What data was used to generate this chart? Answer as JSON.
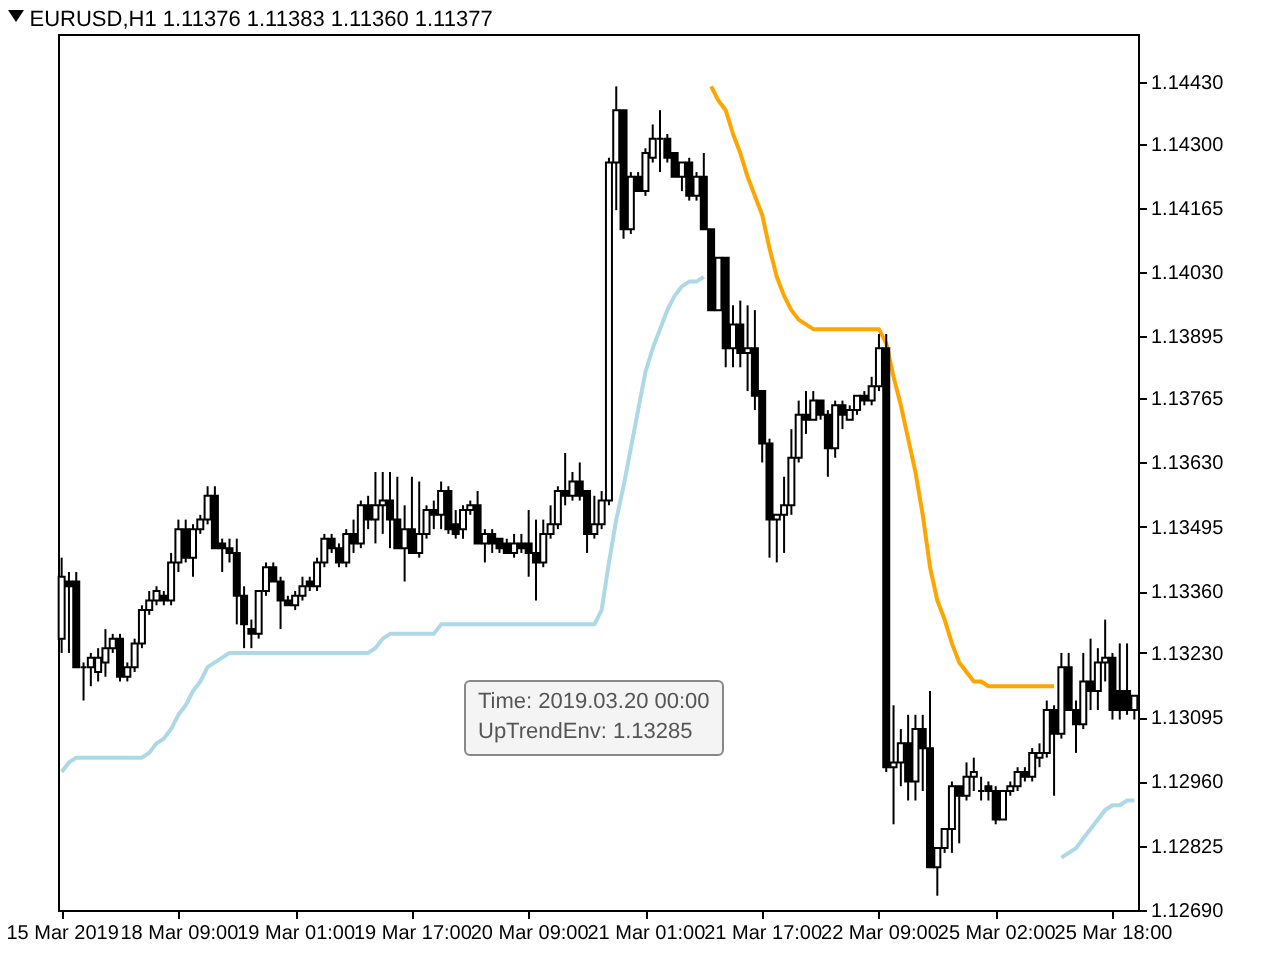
{
  "chart_data": {
    "type": "candlestick",
    "title": "EURUSD,H1  1.11376 1.11383 1.11360 1.11377",
    "categories": [
      "15 Mar 2019",
      null,
      null,
      null,
      null,
      null,
      null,
      null,
      null,
      null,
      null,
      null,
      null,
      null,
      null,
      null,
      "18 Mar 09:00",
      null,
      null,
      null,
      null,
      null,
      null,
      null,
      null,
      null,
      null,
      null,
      null,
      null,
      null,
      null,
      "19 Mar 01:00",
      null,
      null,
      null,
      null,
      null,
      null,
      null,
      null,
      null,
      null,
      null,
      null,
      null,
      null,
      null,
      "19 Mar 17:00",
      null,
      null,
      null,
      null,
      null,
      null,
      null,
      null,
      null,
      null,
      null,
      null,
      null,
      null,
      null,
      "20 Mar 09:00",
      null,
      null,
      null,
      null,
      null,
      null,
      null,
      null,
      null,
      null,
      null,
      null,
      null,
      null,
      null,
      "21 Mar 01:00",
      null,
      null,
      null,
      null,
      null,
      null,
      null,
      null,
      null,
      null,
      null,
      null,
      null,
      null,
      null,
      "21 Mar 17:00",
      null,
      null,
      null,
      null,
      null,
      null,
      null,
      null,
      null,
      null,
      null,
      null,
      null,
      null,
      null,
      "22 Mar 09:00",
      null,
      null,
      null,
      null,
      null,
      null,
      null,
      null,
      null,
      null,
      null,
      null,
      null,
      null,
      null,
      "25 Mar 02:00",
      null,
      null,
      null,
      null,
      null,
      null,
      null,
      null,
      null,
      null,
      null,
      null,
      null,
      null,
      null,
      "25 Mar 18:00",
      null,
      null,
      null
    ],
    "ohlc": [
      [
        1.1326,
        1.1343,
        1.1323,
        1.1339
      ],
      [
        1.1338,
        1.134,
        1.1323,
        1.1337
      ],
      [
        1.1338,
        1.134,
        1.132,
        1.132
      ],
      [
        1.132,
        1.1321,
        1.1313,
        1.132
      ],
      [
        1.132,
        1.1323,
        1.1316,
        1.1322
      ],
      [
        1.1319,
        1.1324,
        1.1317,
        1.1322
      ],
      [
        1.1321,
        1.1328,
        1.1318,
        1.1324
      ],
      [
        1.1324,
        1.1327,
        1.1323,
        1.1326
      ],
      [
        1.1326,
        1.1327,
        1.1317,
        1.1318
      ],
      [
        1.1318,
        1.1321,
        1.1317,
        1.132
      ],
      [
        1.132,
        1.1326,
        1.1319,
        1.1325
      ],
      [
        1.1325,
        1.1333,
        1.1324,
        1.1332
      ],
      [
        1.1332,
        1.1336,
        1.1331,
        1.1334
      ],
      [
        1.1334,
        1.1337,
        1.1333,
        1.1336
      ],
      [
        1.1335,
        1.1336,
        1.1333,
        1.1334
      ],
      [
        1.1334,
        1.1344,
        1.1333,
        1.1342
      ],
      [
        1.1342,
        1.1351,
        1.134,
        1.1349
      ],
      [
        1.1349,
        1.1351,
        1.1342,
        1.1343
      ],
      [
        1.1343,
        1.135,
        1.1339,
        1.1349
      ],
      [
        1.1349,
        1.1352,
        1.1348,
        1.1351
      ],
      [
        1.1351,
        1.1358,
        1.135,
        1.1356
      ],
      [
        1.1356,
        1.1358,
        1.1345,
        1.1345
      ],
      [
        1.1346,
        1.1347,
        1.134,
        1.1345
      ],
      [
        1.1345,
        1.1347,
        1.1342,
        1.1344
      ],
      [
        1.1344,
        1.1347,
        1.1329,
        1.1335
      ],
      [
        1.1335,
        1.1337,
        1.1324,
        1.1329
      ],
      [
        1.1328,
        1.133,
        1.1324,
        1.1327
      ],
      [
        1.1327,
        1.1336,
        1.1326,
        1.1336
      ],
      [
        1.1336,
        1.1342,
        1.1335,
        1.1341
      ],
      [
        1.1341,
        1.1342,
        1.1338,
        1.1338
      ],
      [
        1.1338,
        1.1339,
        1.1328,
        1.1334
      ],
      [
        1.1334,
        1.1335,
        1.1333,
        1.1333
      ],
      [
        1.1333,
        1.1336,
        1.1332,
        1.1335
      ],
      [
        1.1335,
        1.1339,
        1.1334,
        1.1337
      ],
      [
        1.1338,
        1.1339,
        1.1336,
        1.1337
      ],
      [
        1.1337,
        1.1343,
        1.1336,
        1.1342
      ],
      [
        1.1342,
        1.1348,
        1.1341,
        1.1347
      ],
      [
        1.1347,
        1.1348,
        1.1344,
        1.1345
      ],
      [
        1.1345,
        1.1346,
        1.1341,
        1.1342
      ],
      [
        1.1342,
        1.1349,
        1.1341,
        1.1348
      ],
      [
        1.1348,
        1.1351,
        1.1344,
        1.1346
      ],
      [
        1.1346,
        1.1355,
        1.1345,
        1.1354
      ],
      [
        1.1354,
        1.1356,
        1.1349,
        1.1351
      ],
      [
        1.1351,
        1.1361,
        1.1346,
        1.1354
      ],
      [
        1.1354,
        1.1361,
        1.1348,
        1.1355
      ],
      [
        1.1355,
        1.1361,
        1.1345,
        1.1351
      ],
      [
        1.1351,
        1.136,
        1.1345,
        1.1345
      ],
      [
        1.1345,
        1.1354,
        1.1338,
        1.1349
      ],
      [
        1.1349,
        1.136,
        1.1344,
        1.1344
      ],
      [
        1.1344,
        1.1359,
        1.1343,
        1.1348
      ],
      [
        1.1348,
        1.1354,
        1.1347,
        1.1353
      ],
      [
        1.1353,
        1.1355,
        1.1349,
        1.1352
      ],
      [
        1.1352,
        1.1359,
        1.1349,
        1.1357
      ],
      [
        1.1357,
        1.1358,
        1.1348,
        1.1349
      ],
      [
        1.135,
        1.1353,
        1.1347,
        1.1348
      ],
      [
        1.1349,
        1.1354,
        1.1347,
        1.1353
      ],
      [
        1.1353,
        1.1355,
        1.1352,
        1.1354
      ],
      [
        1.1354,
        1.1357,
        1.1346,
        1.1346
      ],
      [
        1.1346,
        1.1349,
        1.1342,
        1.1348
      ],
      [
        1.1348,
        1.1349,
        1.1344,
        1.1346
      ],
      [
        1.1347,
        1.1347,
        1.1344,
        1.1345
      ],
      [
        1.1346,
        1.1347,
        1.1344,
        1.1344
      ],
      [
        1.1344,
        1.1348,
        1.1343,
        1.1346
      ],
      [
        1.1346,
        1.1348,
        1.1344,
        1.1345
      ],
      [
        1.1346,
        1.1353,
        1.1339,
        1.1344
      ],
      [
        1.1344,
        1.1351,
        1.1334,
        1.1342
      ],
      [
        1.1342,
        1.1351,
        1.1341,
        1.1348
      ],
      [
        1.1348,
        1.1354,
        1.1347,
        1.135
      ],
      [
        1.135,
        1.1358,
        1.1349,
        1.1357
      ],
      [
        1.1357,
        1.1365,
        1.1354,
        1.1356
      ],
      [
        1.1356,
        1.1361,
        1.1355,
        1.1359
      ],
      [
        1.1359,
        1.1363,
        1.1355,
        1.1356
      ],
      [
        1.1357,
        1.1357,
        1.1344,
        1.1348
      ],
      [
        1.1348,
        1.1356,
        1.1347,
        1.135
      ],
      [
        1.135,
        1.1357,
        1.1349,
        1.1355
      ],
      [
        1.1355,
        1.1427,
        1.1354,
        1.1426
      ],
      [
        1.1426,
        1.1442,
        1.1416,
        1.1437
      ],
      [
        1.1437,
        1.1437,
        1.141,
        1.1412
      ],
      [
        1.1412,
        1.1424,
        1.1411,
        1.1423
      ],
      [
        1.1423,
        1.1424,
        1.142,
        1.142
      ],
      [
        1.142,
        1.1429,
        1.1419,
        1.1428
      ],
      [
        1.1427,
        1.1434,
        1.1426,
        1.1431
      ],
      [
        1.1431,
        1.1437,
        1.1424,
        1.1431
      ],
      [
        1.1431,
        1.1432,
        1.1426,
        1.1427
      ],
      [
        1.1428,
        1.1428,
        1.1423,
        1.1423
      ],
      [
        1.1423,
        1.1426,
        1.142,
        1.1426
      ],
      [
        1.1426,
        1.1427,
        1.1418,
        1.1419
      ],
      [
        1.1419,
        1.1424,
        1.1418,
        1.1423
      ],
      [
        1.1423,
        1.1428,
        1.1412,
        1.1412
      ],
      [
        1.1412,
        1.1412,
        1.1395,
        1.1395
      ],
      [
        1.1395,
        1.1406,
        1.1395,
        1.1406
      ],
      [
        1.1406,
        1.1406,
        1.1383,
        1.1387
      ],
      [
        1.1387,
        1.1396,
        1.1383,
        1.1392
      ],
      [
        1.1392,
        1.1397,
        1.1383,
        1.1386
      ],
      [
        1.1386,
        1.1396,
        1.1378,
        1.1387
      ],
      [
        1.1387,
        1.1395,
        1.1374,
        1.1377
      ],
      [
        1.1378,
        1.1378,
        1.1363,
        1.1367
      ],
      [
        1.1367,
        1.1368,
        1.1343,
        1.1351
      ],
      [
        1.1351,
        1.1352,
        1.1342,
        1.1352
      ],
      [
        1.1352,
        1.136,
        1.1344,
        1.1354
      ],
      [
        1.1354,
        1.137,
        1.1352,
        1.1364
      ],
      [
        1.1364,
        1.1376,
        1.1363,
        1.1373
      ],
      [
        1.1373,
        1.1378,
        1.1369,
        1.1372
      ],
      [
        1.1372,
        1.1378,
        1.1372,
        1.1376
      ],
      [
        1.1376,
        1.1376,
        1.1372,
        1.1373
      ],
      [
        1.1373,
        1.1374,
        1.136,
        1.1366
      ],
      [
        1.1366,
        1.1376,
        1.1364,
        1.1375
      ],
      [
        1.1375,
        1.1376,
        1.137,
        1.1373
      ],
      [
        1.1372,
        1.1375,
        1.1372,
        1.1374
      ],
      [
        1.1374,
        1.1377,
        1.1373,
        1.1377
      ],
      [
        1.1377,
        1.1378,
        1.1375,
        1.1376
      ],
      [
        1.1376,
        1.1381,
        1.1375,
        1.1379
      ],
      [
        1.1379,
        1.139,
        1.1378,
        1.1387
      ],
      [
        1.1387,
        1.139,
        1.1298,
        1.1299
      ],
      [
        1.1299,
        1.1312,
        1.1287,
        1.13
      ],
      [
        1.13,
        1.1307,
        1.1295,
        1.1304
      ],
      [
        1.1304,
        1.131,
        1.1292,
        1.1296
      ],
      [
        1.1296,
        1.131,
        1.1292,
        1.1307
      ],
      [
        1.1307,
        1.131,
        1.1294,
        1.1303
      ],
      [
        1.1303,
        1.1315,
        1.1278,
        1.1278
      ],
      [
        1.1278,
        1.1282,
        1.1272,
        1.1282
      ],
      [
        1.1282,
        1.1286,
        1.1281,
        1.1286
      ],
      [
        1.1286,
        1.1296,
        1.1281,
        1.1295
      ],
      [
        1.1295,
        1.1295,
        1.1283,
        1.1293
      ],
      [
        1.1293,
        1.13,
        1.1292,
        1.1297
      ],
      [
        1.1297,
        1.1301,
        1.1294,
        1.1298
      ],
      [
        1.1294,
        1.1297,
        1.1292,
        1.1294
      ],
      [
        1.1295,
        1.1296,
        1.1292,
        1.1294
      ],
      [
        1.1294,
        1.1295,
        1.1287,
        1.1288
      ],
      [
        1.1288,
        1.1294,
        1.1288,
        1.1294
      ],
      [
        1.1294,
        1.1296,
        1.1293,
        1.1295
      ],
      [
        1.1295,
        1.1299,
        1.1294,
        1.1298
      ],
      [
        1.1298,
        1.1299,
        1.1296,
        1.1297
      ],
      [
        1.1297,
        1.1303,
        1.1296,
        1.1302
      ],
      [
        1.1301,
        1.1304,
        1.1299,
        1.1302
      ],
      [
        1.1302,
        1.1313,
        1.1301,
        1.1311
      ],
      [
        1.1311,
        1.1312,
        1.1293,
        1.1306
      ],
      [
        1.1306,
        1.1323,
        1.1305,
        1.132
      ],
      [
        1.132,
        1.1323,
        1.1311,
        1.1311
      ],
      [
        1.1311,
        1.1313,
        1.1302,
        1.1308
      ],
      [
        1.1308,
        1.1323,
        1.1307,
        1.1317
      ],
      [
        1.1317,
        1.1326,
        1.1311,
        1.1315
      ],
      [
        1.1315,
        1.1324,
        1.1311,
        1.1321
      ],
      [
        1.1321,
        1.133,
        1.1317,
        1.1322
      ],
      [
        1.1322,
        1.1323,
        1.1309,
        1.1311
      ],
      [
        1.1315,
        1.1325,
        1.1309,
        1.1311
      ],
      [
        1.1315,
        1.1325,
        1.131,
        1.1311
      ],
      [
        1.1311,
        1.1314,
        1.1309,
        1.1314
      ]
    ],
    "series": [
      {
        "type": "line",
        "color": "#add8e6",
        "values": [
          1.1298,
          1.13,
          1.1301,
          1.1301,
          1.1301,
          1.1301,
          1.1301,
          1.1301,
          1.1301,
          1.1301,
          1.1301,
          1.1301,
          1.1302,
          1.1304,
          1.1305,
          1.1307,
          1.131,
          1.1312,
          1.1315,
          1.1317,
          1.132,
          1.1321,
          1.1322,
          1.1323,
          1.1323,
          1.1323,
          1.1323,
          1.1323,
          1.1323,
          1.1323,
          1.1323,
          1.1323,
          1.1323,
          1.1323,
          1.1323,
          1.1323,
          1.1323,
          1.1323,
          1.1323,
          1.1323,
          1.1323,
          1.1323,
          1.1323,
          1.1324,
          1.1326,
          1.1327,
          1.1327,
          1.1327,
          1.1327,
          1.1327,
          1.1327,
          1.1327,
          1.1329,
          1.1329,
          1.1329,
          1.1329,
          1.1329,
          1.1329,
          1.1329,
          1.1329,
          1.1329,
          1.1329,
          1.1329,
          1.1329,
          1.1329,
          1.1329,
          1.1329,
          1.1329,
          1.1329,
          1.1329,
          1.1329,
          1.1329,
          1.1329,
          1.1329,
          1.1332,
          1.1342,
          1.1351,
          1.1358,
          1.1366,
          1.1374,
          1.1382,
          1.1387,
          1.1391,
          1.1395,
          1.1398,
          1.14,
          1.1401,
          1.1401,
          1.1402,
          null,
          null,
          null,
          null,
          null,
          null,
          null,
          null,
          null,
          null,
          null,
          null,
          null,
          null,
          null,
          null,
          null,
          null,
          null,
          null,
          null,
          null,
          null,
          null,
          null,
          null,
          null,
          null,
          null,
          null,
          null,
          null,
          null,
          null,
          null,
          null,
          null,
          null,
          null,
          null,
          null,
          null,
          null,
          null,
          null,
          null,
          null,
          null,
          1.128,
          1.1281,
          1.1282,
          1.1284,
          1.1286,
          1.1288,
          1.129,
          1.1291,
          1.1291,
          1.1292,
          1.1292
        ]
      },
      {
        "type": "line",
        "color": "#ffa500",
        "values": [
          null,
          null,
          null,
          null,
          null,
          null,
          null,
          null,
          null,
          null,
          null,
          null,
          null,
          null,
          null,
          null,
          null,
          null,
          null,
          null,
          null,
          null,
          null,
          null,
          null,
          null,
          null,
          null,
          null,
          null,
          null,
          null,
          null,
          null,
          null,
          null,
          null,
          null,
          null,
          null,
          null,
          null,
          null,
          null,
          null,
          null,
          null,
          null,
          null,
          null,
          null,
          null,
          null,
          null,
          null,
          null,
          null,
          null,
          null,
          null,
          null,
          null,
          null,
          null,
          null,
          null,
          null,
          null,
          null,
          null,
          null,
          null,
          null,
          null,
          null,
          null,
          null,
          null,
          null,
          null,
          null,
          null,
          null,
          null,
          null,
          null,
          null,
          null,
          null,
          1.1442,
          1.1439,
          1.1437,
          1.1432,
          1.1428,
          1.1423,
          1.1419,
          1.1415,
          1.1408,
          1.1402,
          1.1398,
          1.1395,
          1.1393,
          1.1392,
          1.1391,
          1.1391,
          1.1391,
          1.1391,
          1.1391,
          1.1391,
          1.1391,
          1.1391,
          1.1391,
          1.1391,
          1.1388,
          1.1381,
          1.1375,
          1.1368,
          1.1361,
          1.1352,
          1.1341,
          1.1334,
          1.133,
          1.1325,
          1.1321,
          1.1319,
          1.1317,
          1.1317,
          1.1316,
          1.1316,
          1.1316,
          1.1316,
          1.1316,
          1.1316,
          1.1316,
          1.1316,
          1.1316,
          1.1316,
          null,
          null,
          null,
          null,
          null,
          null,
          null,
          null,
          null,
          null,
          null
        ]
      }
    ],
    "ylim": [
      1.1269,
      1.1453
    ],
    "yticks": [
      {
        "value": 1.1269,
        "label": "1.12690"
      },
      {
        "value": 1.12825,
        "label": "1.12825"
      },
      {
        "value": 1.1296,
        "label": "1.12960"
      },
      {
        "value": 1.13095,
        "label": "1.13095"
      },
      {
        "value": 1.1323,
        "label": "1.13230"
      },
      {
        "value": 1.1336,
        "label": "1.13360"
      },
      {
        "value": 1.13495,
        "label": "1.13495"
      },
      {
        "value": 1.1363,
        "label": "1.13630"
      },
      {
        "value": 1.13765,
        "label": "1.13765"
      },
      {
        "value": 1.13895,
        "label": "1.13895"
      },
      {
        "value": 1.1403,
        "label": "1.14030"
      },
      {
        "value": 1.14165,
        "label": "1.14165"
      },
      {
        "value": 1.143,
        "label": "1.14300"
      },
      {
        "value": 1.1443,
        "label": "1.14430"
      }
    ],
    "annotations": [
      "Time: 2019.03.20 00:00",
      "UpTrendEnv: 1.13285"
    ]
  }
}
